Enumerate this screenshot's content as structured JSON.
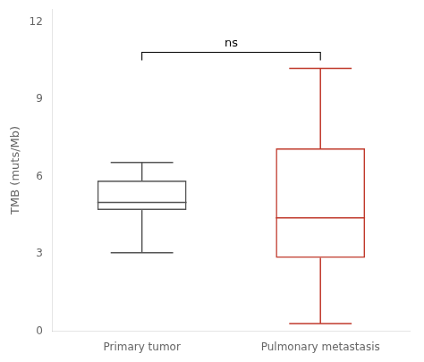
{
  "chart_data": {
    "type": "box",
    "categories": [
      "Primary tumor",
      "Pulmonary metastasis"
    ],
    "boxes": [
      {
        "whisker_low": 3.05,
        "q1": 4.7,
        "median": 5.0,
        "q3": 5.85,
        "whisker_high": 6.55
      },
      {
        "whisker_low": 0.3,
        "q1": 2.85,
        "median": 4.4,
        "q3": 7.1,
        "whisker_high": 10.2
      }
    ],
    "colors": [
      "#555555",
      "#c0392b"
    ],
    "ylabel": "TMB (muts/Mb)",
    "ylim": [
      0,
      12.5
    ],
    "yticks": [
      0,
      3,
      6,
      9,
      12
    ],
    "annotation": "ns",
    "grid": false
  }
}
